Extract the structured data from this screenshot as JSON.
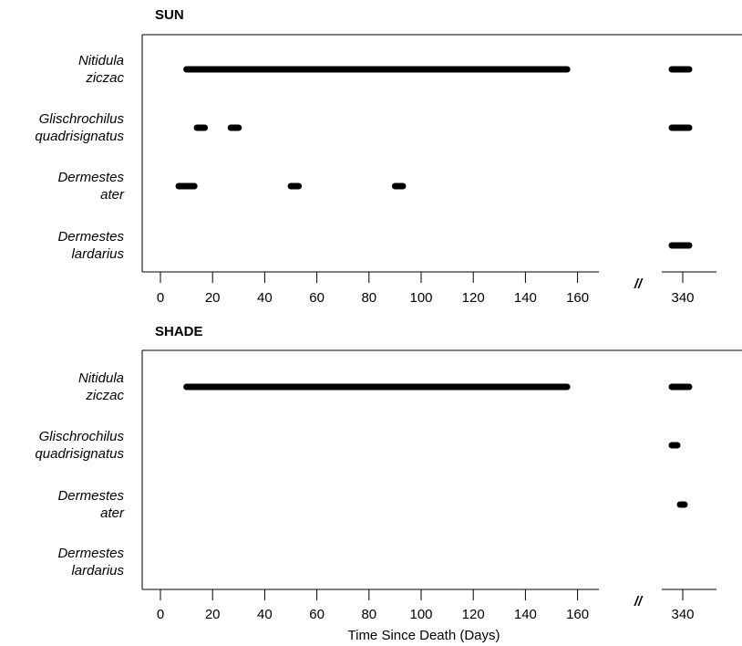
{
  "chart_data": [
    {
      "type": "timeline",
      "title": "SUN",
      "species": [
        {
          "name": "Nitidula ziczac",
          "lines": [
            "Nitidula",
            "ziczac"
          ],
          "intervals": [
            [
              10,
              156
            ],
            [
              328,
              347
            ]
          ]
        },
        {
          "name": "Glischrochilus quadrisignatus",
          "lines": [
            "Glischrochilus",
            "quadrisignatus"
          ],
          "intervals": [
            [
              14,
              17
            ],
            [
              27,
              30
            ],
            [
              328,
              347
            ]
          ]
        },
        {
          "name": "Dermestes ater",
          "lines": [
            "Dermestes",
            "ater"
          ],
          "intervals": [
            [
              7,
              13
            ],
            [
              50,
              53
            ],
            [
              90,
              93
            ]
          ]
        },
        {
          "name": "Dermestes lardarius",
          "lines": [
            "Dermestes",
            "lardarius"
          ],
          "intervals": [
            [
              328,
              347
            ]
          ]
        }
      ],
      "x_ticks": [
        0,
        20,
        40,
        60,
        80,
        100,
        120,
        140,
        160
      ],
      "x_ticks_after_break": [
        340
      ],
      "x_break": "//",
      "xlabel": ""
    },
    {
      "type": "timeline",
      "title": "SHADE",
      "species": [
        {
          "name": "Nitidula ziczac",
          "lines": [
            "Nitidula",
            "ziczac"
          ],
          "intervals": [
            [
              10,
              156
            ],
            [
              328,
              347
            ]
          ]
        },
        {
          "name": "Glischrochilus quadrisignatus",
          "lines": [
            "Glischrochilus",
            "quadrisignatus"
          ],
          "intervals": [
            [
              328,
              334
            ]
          ]
        },
        {
          "name": "Dermestes ater",
          "lines": [
            "Dermestes",
            "ater"
          ],
          "intervals": [
            [
              337,
              342
            ]
          ]
        },
        {
          "name": "Dermestes lardarius",
          "lines": [
            "Dermestes",
            "lardarius"
          ],
          "intervals": []
        }
      ],
      "x_ticks": [
        0,
        20,
        40,
        60,
        80,
        100,
        120,
        140,
        160
      ],
      "x_ticks_after_break": [
        340
      ],
      "x_break": "//",
      "xlabel": "Time Since Death (Days)"
    }
  ]
}
